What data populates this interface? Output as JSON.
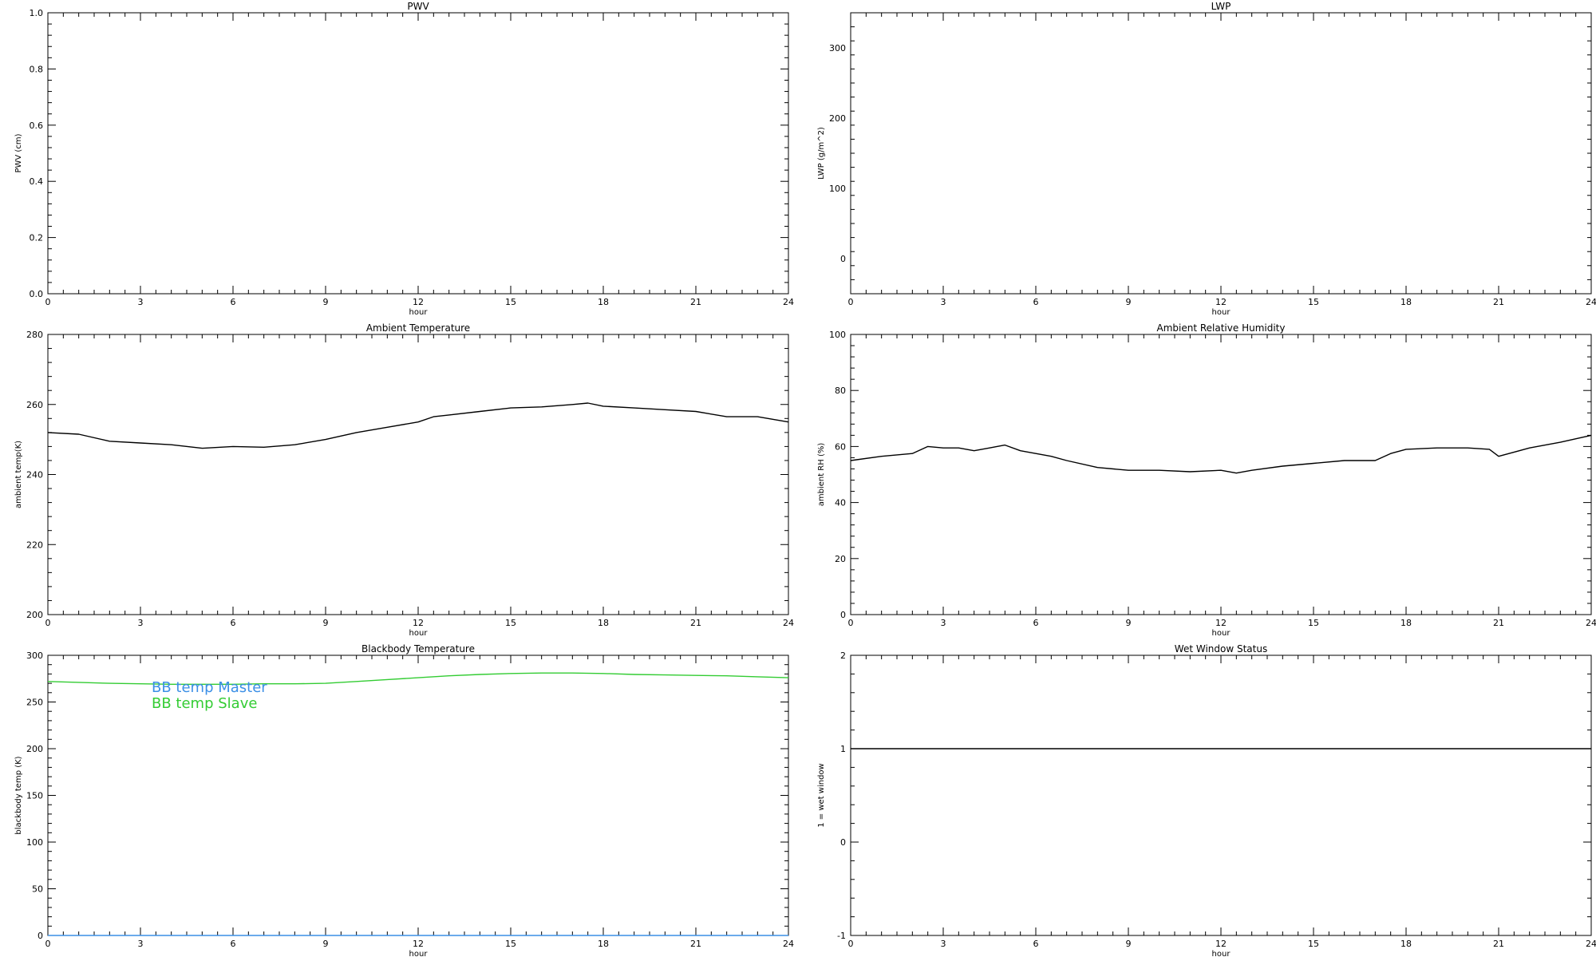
{
  "chart_data": [
    {
      "id": "pwv",
      "type": "line",
      "title": "PWV",
      "xlabel": "hour",
      "ylabel": "PWV (cm)",
      "xlim": [
        0,
        24
      ],
      "ylim": [
        0,
        1
      ],
      "xticks": [
        0,
        3,
        6,
        9,
        12,
        15,
        18,
        21,
        24
      ],
      "yticks": [
        0,
        0.2,
        0.4,
        0.6,
        0.8,
        1.0
      ],
      "ytick_labels": [
        "0.0",
        "0.2",
        "0.4",
        "0.6",
        "0.8",
        "1.0"
      ],
      "series": []
    },
    {
      "id": "lwp",
      "type": "line",
      "title": "LWP",
      "xlabel": "hour",
      "ylabel": "LWP (g/m^2)",
      "xlim": [
        0,
        24
      ],
      "ylim": [
        -50,
        350
      ],
      "xticks": [
        0,
        3,
        6,
        9,
        12,
        15,
        18,
        21,
        24
      ],
      "yticks": [
        0,
        100,
        200,
        300
      ],
      "ytick_labels": [
        "0",
        "100",
        "200",
        "300"
      ],
      "series": []
    },
    {
      "id": "ambient-temperature",
      "type": "line",
      "title": "Ambient Temperature",
      "xlabel": "hour",
      "ylabel": "ambient temp(K)",
      "xlim": [
        0,
        24
      ],
      "ylim": [
        200,
        280
      ],
      "xticks": [
        0,
        3,
        6,
        9,
        12,
        15,
        18,
        21,
        24
      ],
      "yticks": [
        200,
        220,
        240,
        260,
        280
      ],
      "ytick_labels": [
        "200",
        "220",
        "240",
        "260",
        "280"
      ],
      "series": [
        {
          "color": "#000000",
          "x": [
            0,
            1,
            2,
            3,
            4,
            5,
            6,
            7,
            8,
            9,
            10,
            11,
            12,
            12.5,
            13,
            14,
            15,
            16,
            17,
            17.5,
            18,
            19,
            20,
            21,
            22,
            23,
            24
          ],
          "y": [
            252,
            251.5,
            249.5,
            249,
            248.5,
            247.5,
            248,
            247.8,
            248.5,
            250,
            252,
            253.5,
            255,
            256.5,
            257,
            258,
            259,
            259.3,
            260,
            260.4,
            259.5,
            259,
            258.5,
            258,
            256.5,
            256.5,
            255
          ]
        }
      ]
    },
    {
      "id": "ambient-relative-humidity",
      "type": "line",
      "title": "Ambient Relative Humidity",
      "xlabel": "hour",
      "ylabel": "ambient RH (%)",
      "xlim": [
        0,
        24
      ],
      "ylim": [
        0,
        100
      ],
      "xticks": [
        0,
        3,
        6,
        9,
        12,
        15,
        18,
        21,
        24
      ],
      "yticks": [
        0,
        20,
        40,
        60,
        80,
        100
      ],
      "ytick_labels": [
        "0",
        "20",
        "40",
        "60",
        "80",
        "100"
      ],
      "series": [
        {
          "color": "#000000",
          "x": [
            0,
            1,
            2,
            2.5,
            3,
            3.5,
            4,
            4.5,
            5,
            5.5,
            6,
            6.5,
            7,
            8,
            9,
            10,
            11,
            12,
            12.5,
            13,
            14,
            15,
            16,
            17,
            17.5,
            18,
            19,
            20,
            20.7,
            21,
            22,
            23,
            24
          ],
          "y": [
            55,
            56.5,
            57.5,
            60,
            59.5,
            59.5,
            58.5,
            59.5,
            60.5,
            58.5,
            57.5,
            56.5,
            55,
            52.5,
            51.5,
            51.5,
            51,
            51.5,
            50.5,
            51.5,
            53,
            54,
            55,
            55,
            57.5,
            59,
            59.5,
            59.5,
            59,
            56.5,
            59.5,
            61.5,
            64
          ]
        }
      ]
    },
    {
      "id": "blackbody-temperature",
      "type": "line",
      "title": "Blackbody Temperature",
      "xlabel": "hour",
      "ylabel": "blackbody temp (K)",
      "xlim": [
        0,
        24
      ],
      "ylim": [
        0,
        300
      ],
      "xticks": [
        0,
        3,
        6,
        9,
        12,
        15,
        18,
        21,
        24
      ],
      "yticks": [
        0,
        50,
        100,
        150,
        200,
        250,
        300
      ],
      "ytick_labels": [
        "0",
        "50",
        "100",
        "150",
        "200",
        "250",
        "300"
      ],
      "legend": "top-left",
      "series": [
        {
          "name": "BB temp Master",
          "color": "#3b8fe6",
          "x": [
            0,
            3,
            6,
            9,
            12,
            15,
            18,
            21,
            24
          ],
          "y": [
            0,
            0,
            0,
            0,
            0,
            0,
            0,
            0,
            0
          ]
        },
        {
          "name": "BB temp Slave",
          "color": "#33cc33",
          "x": [
            0,
            1,
            2,
            3,
            4,
            5,
            6,
            7,
            8,
            9,
            10,
            11,
            12,
            13,
            14,
            15,
            16,
            17,
            18,
            19,
            20,
            21,
            22,
            23,
            24
          ],
          "y": [
            272,
            271,
            270,
            269.5,
            269,
            269,
            269,
            269.5,
            269.5,
            270,
            272,
            274,
            276,
            278,
            279.5,
            280.5,
            281,
            281,
            280.5,
            279.5,
            279,
            278.5,
            278,
            277,
            276
          ]
        }
      ]
    },
    {
      "id": "wet-window-status",
      "type": "line",
      "title": "Wet Window Status",
      "xlabel": "hour",
      "ylabel": "1 = wet window",
      "xlim": [
        0,
        24
      ],
      "ylim": [
        -1,
        2
      ],
      "xticks": [
        0,
        3,
        6,
        9,
        12,
        15,
        18,
        21,
        24
      ],
      "yticks": [
        -1,
        0,
        1,
        2
      ],
      "ytick_labels": [
        "-1",
        "0",
        "1",
        "2"
      ],
      "series": [
        {
          "color": "#000000",
          "x": [
            0,
            24
          ],
          "y": [
            1,
            1
          ]
        }
      ]
    }
  ]
}
